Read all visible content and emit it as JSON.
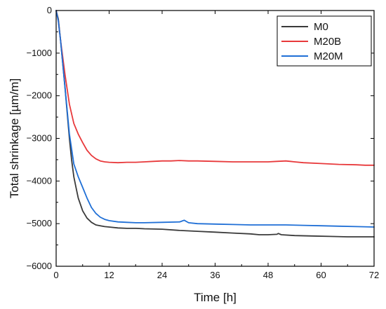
{
  "chart_data": {
    "type": "line",
    "title": "",
    "xlabel": "Time [h]",
    "ylabel": "Total shrinkage [µm/m]",
    "xlim": [
      0,
      72
    ],
    "ylim": [
      -6000,
      0
    ],
    "xticks": [
      0,
      12,
      24,
      36,
      48,
      60,
      72
    ],
    "yticks": [
      0,
      -1000,
      -2000,
      -3000,
      -4000,
      -5000,
      -6000
    ],
    "grid": false,
    "legend_position": "top-right",
    "series": [
      {
        "name": "M0",
        "color": "#3a3a3a",
        "x": [
          0,
          0.5,
          1,
          2,
          3,
          3.5,
          4,
          4.5,
          5,
          6,
          7,
          8,
          9,
          10,
          11,
          12,
          14,
          16,
          18,
          20,
          24,
          28,
          32,
          36,
          40,
          44,
          46,
          48,
          50,
          50.3,
          51,
          54,
          58,
          62,
          66,
          70,
          72
        ],
        "y": [
          0,
          -200,
          -700,
          -1800,
          -3000,
          -3500,
          -3900,
          -4150,
          -4400,
          -4700,
          -4870,
          -4970,
          -5030,
          -5050,
          -5070,
          -5080,
          -5100,
          -5110,
          -5110,
          -5120,
          -5130,
          -5160,
          -5180,
          -5200,
          -5220,
          -5240,
          -5260,
          -5260,
          -5250,
          -5230,
          -5260,
          -5280,
          -5290,
          -5300,
          -5310,
          -5310,
          -5310
        ]
      },
      {
        "name": "M20B",
        "color": "#e8393b",
        "x": [
          0,
          0.5,
          1,
          2,
          3,
          4,
          5,
          6,
          7,
          8,
          9,
          10,
          11,
          12,
          14,
          16,
          18,
          20,
          22,
          24,
          26,
          28,
          30,
          32,
          36,
          40,
          44,
          48,
          50,
          52,
          53,
          54,
          56,
          60,
          64,
          68,
          70,
          72
        ],
        "y": [
          0,
          -250,
          -700,
          -1500,
          -2200,
          -2650,
          -2900,
          -3100,
          -3280,
          -3400,
          -3480,
          -3530,
          -3550,
          -3560,
          -3570,
          -3560,
          -3560,
          -3550,
          -3540,
          -3530,
          -3530,
          -3520,
          -3530,
          -3530,
          -3540,
          -3550,
          -3550,
          -3550,
          -3540,
          -3530,
          -3540,
          -3550,
          -3570,
          -3590,
          -3610,
          -3620,
          -3630,
          -3630
        ]
      },
      {
        "name": "M20M",
        "color": "#1f6fd6",
        "x": [
          0,
          0.5,
          1,
          2,
          3,
          4,
          5,
          6,
          7,
          8,
          9,
          10,
          11,
          12,
          14,
          16,
          18,
          20,
          24,
          28,
          28.5,
          29,
          29.5,
          30,
          32,
          36,
          40,
          44,
          48,
          52,
          56,
          60,
          64,
          68,
          72
        ],
        "y": [
          0,
          -250,
          -700,
          -1800,
          -2900,
          -3600,
          -3900,
          -4150,
          -4400,
          -4620,
          -4760,
          -4850,
          -4900,
          -4930,
          -4960,
          -4970,
          -4980,
          -4980,
          -4970,
          -4960,
          -4940,
          -4920,
          -4950,
          -4980,
          -5000,
          -5010,
          -5020,
          -5030,
          -5030,
          -5030,
          -5040,
          -5050,
          -5060,
          -5070,
          -5080
        ]
      }
    ]
  }
}
